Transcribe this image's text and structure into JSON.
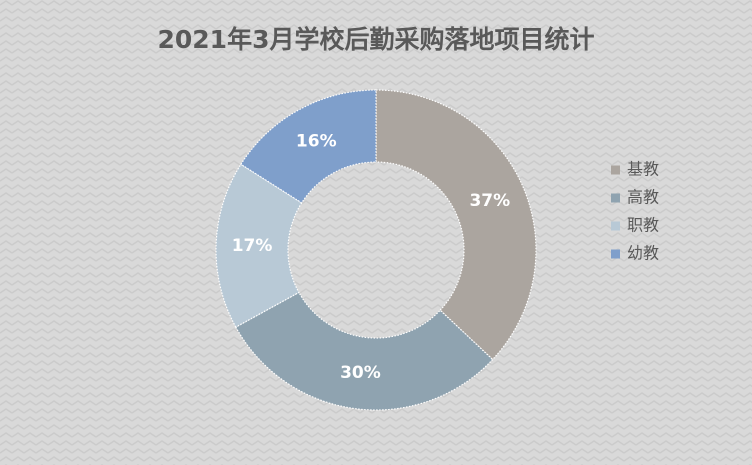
{
  "chart_data": {
    "type": "donut",
    "title": "2021年3月学校后勤采购落地项目统计",
    "categories": [
      "基教",
      "高教",
      "职教",
      "幼教"
    ],
    "values": [
      37,
      30,
      17,
      16
    ],
    "value_labels": [
      "37%",
      "30%",
      "17%",
      "16%"
    ],
    "colors": [
      "#aba59f",
      "#8fa3b0",
      "#b8c9d6",
      "#7f9fcb"
    ],
    "legend": "right"
  }
}
